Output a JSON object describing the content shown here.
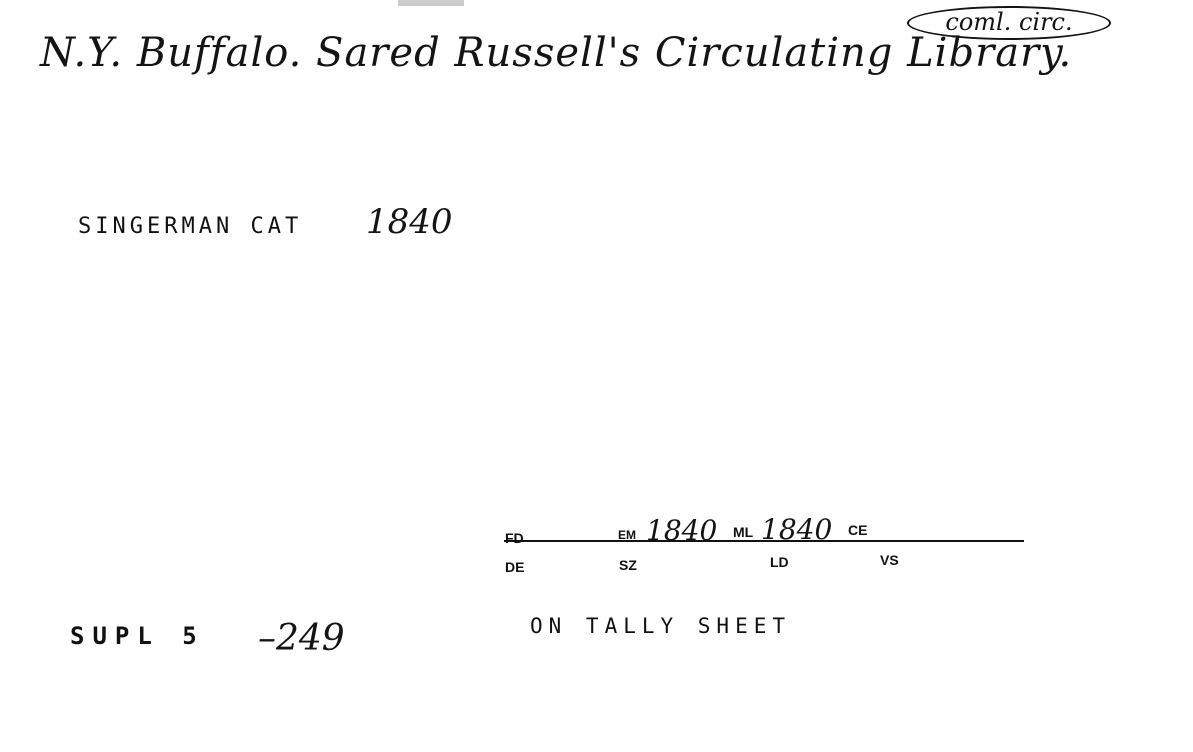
{
  "heading": "N.Y. Buffalo. Sared Russell's Circulating Library.",
  "stamp": "coml. circ.",
  "singerman": {
    "label": "SINGERMAN CAT",
    "year": "1840"
  },
  "form": {
    "labels": {
      "fd": "FD",
      "em": "EM",
      "ml": "ML",
      "ce": "CE",
      "de": "DE",
      "sz": "SZ",
      "ld": "LD",
      "vs": "VS"
    },
    "em_value": "1840",
    "ml_value": "1840"
  },
  "tally": "ON TALLY SHEET",
  "supl": {
    "prefix": "SUPL 5",
    "number": "249"
  }
}
